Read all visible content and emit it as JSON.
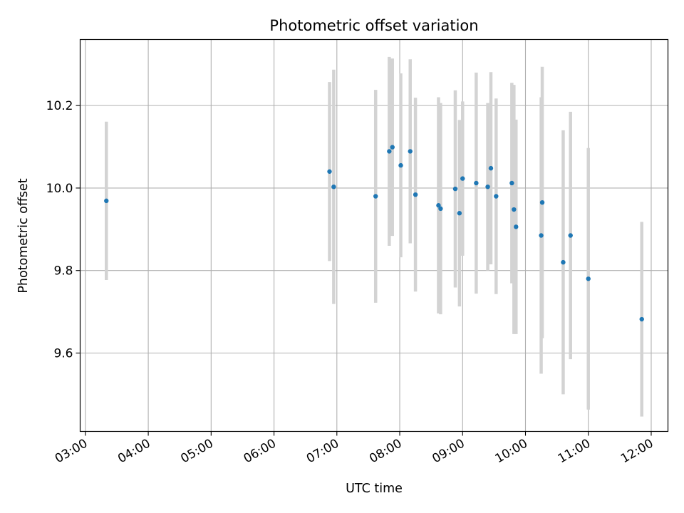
{
  "chart_data": {
    "type": "scatter",
    "title": "Photometric offset variation",
    "xlabel": "UTC time",
    "ylabel": "Photometric offset",
    "x_axis_type": "time",
    "xlim": [
      "02:55",
      "12:16"
    ],
    "ylim": [
      9.41,
      10.36
    ],
    "xticks": [
      "03:00",
      "04:00",
      "05:00",
      "06:00",
      "07:00",
      "08:00",
      "09:00",
      "10:00",
      "11:00",
      "12:00"
    ],
    "yticks": [
      9.6,
      9.8,
      10.0,
      10.2
    ],
    "grid": true,
    "marker_color": "#1f77b4",
    "errorbar_color": "#d3d3d3",
    "series": [
      {
        "points": [
          {
            "x": "03:20",
            "y": 9.969,
            "yerr": 0.192
          },
          {
            "x": "06:53",
            "y": 10.04,
            "yerr": 0.217
          },
          {
            "x": "06:57",
            "y": 10.003,
            "yerr": 0.284
          },
          {
            "x": "07:37",
            "y": 9.98,
            "yerr": 0.258
          },
          {
            "x": "07:50",
            "y": 10.089,
            "yerr": 0.229
          },
          {
            "x": "07:53",
            "y": 10.099,
            "yerr": 0.215
          },
          {
            "x": "08:01",
            "y": 10.055,
            "yerr": 0.223
          },
          {
            "x": "08:10",
            "y": 10.089,
            "yerr": 0.223
          },
          {
            "x": "08:15",
            "y": 9.984,
            "yerr": 0.235
          },
          {
            "x": "08:37",
            "y": 9.958,
            "yerr": 0.262
          },
          {
            "x": "08:39",
            "y": 9.95,
            "yerr": 0.256
          },
          {
            "x": "08:53",
            "y": 9.998,
            "yerr": 0.239
          },
          {
            "x": "08:57",
            "y": 9.939,
            "yerr": 0.226
          },
          {
            "x": "09:00",
            "y": 10.023,
            "yerr": 0.187
          },
          {
            "x": "09:13",
            "y": 10.012,
            "yerr": 0.268
          },
          {
            "x": "09:24",
            "y": 10.003,
            "yerr": 0.203
          },
          {
            "x": "09:27",
            "y": 10.048,
            "yerr": 0.233
          },
          {
            "x": "09:32",
            "y": 9.98,
            "yerr": 0.237
          },
          {
            "x": "09:47",
            "y": 10.012,
            "yerr": 0.243
          },
          {
            "x": "09:49",
            "y": 9.948,
            "yerr": 0.302
          },
          {
            "x": "09:51",
            "y": 9.906,
            "yerr": 0.26
          },
          {
            "x": "10:15",
            "y": 9.885,
            "yerr": 0.335
          },
          {
            "x": "10:16",
            "y": 9.965,
            "yerr": 0.329
          },
          {
            "x": "10:36",
            "y": 9.82,
            "yerr": 0.32
          },
          {
            "x": "10:43",
            "y": 9.885,
            "yerr": 0.3
          },
          {
            "x": "11:00",
            "y": 9.78,
            "yerr": 0.317
          },
          {
            "x": "11:51",
            "y": 9.682,
            "yerr": 0.236
          }
        ]
      }
    ]
  }
}
